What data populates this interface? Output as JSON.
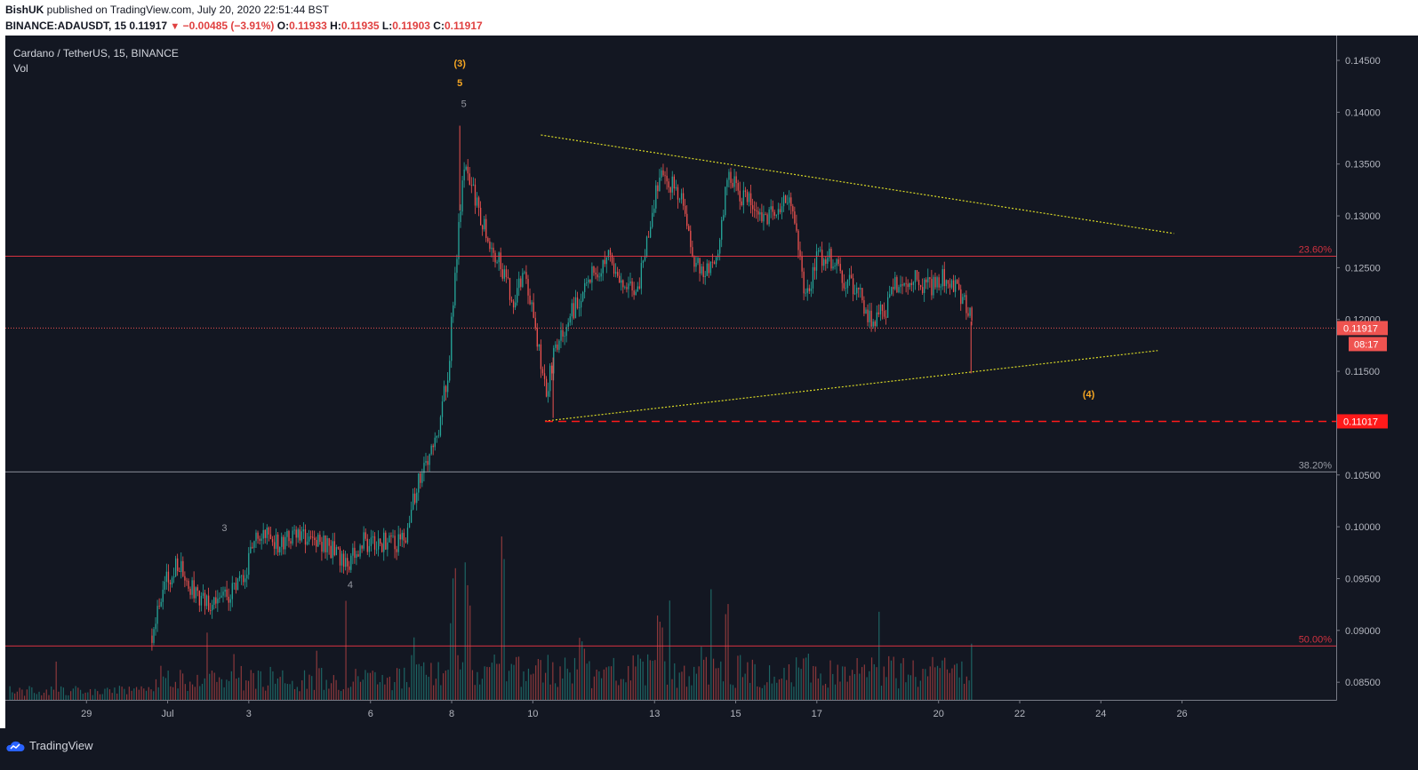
{
  "header": {
    "author": "BishUK",
    "published_text": " published on TradingView.com, July 20, 2020 22:51:44 BST",
    "symbol_line": "BINANCE:ADAUSDT, 15",
    "last": "0.11917",
    "change": "−0.00485 (−3.91%)",
    "open_label": "O:",
    "open": "0.11933",
    "high_label": "H:",
    "high": "0.11935",
    "low_label": "L:",
    "low": "0.11903",
    "close_label": "C:",
    "close": "0.11917"
  },
  "legend": {
    "title": "Cardano / TetherUS, 15, BINANCE",
    "indicator": "Vol"
  },
  "footer": {
    "brand": "TradingView"
  },
  "colors": {
    "background": "#131722",
    "up": "#26a69a",
    "down": "#ef5350",
    "fib": "#f23645",
    "triangle": "#d9d926",
    "wave_label": "#f5a623"
  },
  "chart_data": {
    "type": "candlestick",
    "title": "Cardano / TetherUS, 15, BINANCE",
    "ylim": [
      0.0833,
      0.1474
    ],
    "y_ticks": [
      0.085,
      0.09,
      0.095,
      0.1,
      0.105,
      0.11,
      0.115,
      0.12,
      0.125,
      0.13,
      0.135,
      0.14,
      0.145
    ],
    "y_tick_labels": [
      "0.08500",
      "0.09000",
      "0.09500",
      "0.10000",
      "0.10500",
      "0.11000",
      "0.11500",
      "0.12000",
      "0.12500",
      "0.13000",
      "0.13500",
      "0.14000",
      "0.14500"
    ],
    "x_range_days": [
      27.0,
      59.8
    ],
    "x_ticks": [
      {
        "day": 29,
        "label": "29"
      },
      {
        "day": 31,
        "label": "Jul"
      },
      {
        "day": 33,
        "label": "3"
      },
      {
        "day": 36,
        "label": "6"
      },
      {
        "day": 38,
        "label": "8"
      },
      {
        "day": 40,
        "label": "10"
      },
      {
        "day": 43,
        "label": "13"
      },
      {
        "day": 45,
        "label": "15"
      },
      {
        "day": 47,
        "label": "17"
      },
      {
        "day": 50,
        "label": "20"
      },
      {
        "day": 52,
        "label": "22"
      },
      {
        "day": 54,
        "label": "24"
      },
      {
        "day": 56,
        "label": "26"
      }
    ],
    "price_path": [
      [
        30.6,
        0.0895
      ],
      [
        30.8,
        0.0935
      ],
      [
        31.2,
        0.0965
      ],
      [
        31.6,
        0.094
      ],
      [
        32.0,
        0.0925
      ],
      [
        32.5,
        0.0935
      ],
      [
        32.8,
        0.0945
      ],
      [
        33.2,
        0.0995
      ],
      [
        33.7,
        0.0985
      ],
      [
        34.2,
        0.0995
      ],
      [
        34.8,
        0.0985
      ],
      [
        35.4,
        0.0965
      ],
      [
        35.8,
        0.0985
      ],
      [
        36.3,
        0.0985
      ],
      [
        36.8,
        0.0985
      ],
      [
        37.2,
        0.105
      ],
      [
        37.6,
        0.108
      ],
      [
        37.9,
        0.115
      ],
      [
        38.1,
        0.126
      ],
      [
        38.3,
        0.135
      ],
      [
        38.6,
        0.131
      ],
      [
        38.9,
        0.128
      ],
      [
        39.2,
        0.125
      ],
      [
        39.5,
        0.122
      ],
      [
        39.8,
        0.124
      ],
      [
        40.0,
        0.12
      ],
      [
        40.3,
        0.113
      ],
      [
        40.6,
        0.118
      ],
      [
        41.0,
        0.121
      ],
      [
        41.4,
        0.124
      ],
      [
        41.8,
        0.126
      ],
      [
        42.2,
        0.124
      ],
      [
        42.6,
        0.123
      ],
      [
        42.8,
        0.128
      ],
      [
        43.1,
        0.134
      ],
      [
        43.4,
        0.133
      ],
      [
        43.7,
        0.131
      ],
      [
        43.9,
        0.126
      ],
      [
        44.2,
        0.124
      ],
      [
        44.5,
        0.126
      ],
      [
        44.8,
        0.134
      ],
      [
        45.1,
        0.132
      ],
      [
        45.4,
        0.131
      ],
      [
        45.7,
        0.13
      ],
      [
        46.0,
        0.13
      ],
      [
        46.3,
        0.132
      ],
      [
        46.5,
        0.128
      ],
      [
        46.7,
        0.122
      ],
      [
        47.0,
        0.126
      ],
      [
        47.3,
        0.126
      ],
      [
        47.6,
        0.124
      ],
      [
        48.0,
        0.123
      ],
      [
        48.3,
        0.12
      ],
      [
        48.7,
        0.121
      ],
      [
        49.0,
        0.124
      ],
      [
        49.4,
        0.124
      ],
      [
        49.8,
        0.123
      ],
      [
        50.1,
        0.124
      ],
      [
        50.4,
        0.123
      ],
      [
        50.7,
        0.121
      ],
      [
        50.85,
        0.1192
      ]
    ],
    "volume_peaks": [
      {
        "day": 37.0,
        "value": 0.55
      },
      {
        "day": 38.1,
        "value": 1.0
      },
      {
        "day": 38.4,
        "value": 0.85
      },
      {
        "day": 39.2,
        "value": 0.95
      },
      {
        "day": 41.2,
        "value": 0.4
      },
      {
        "day": 43.1,
        "value": 0.5
      },
      {
        "day": 44.8,
        "value": 0.55
      },
      {
        "day": 46.7,
        "value": 0.35
      },
      {
        "day": 50.85,
        "value": 0.45
      }
    ],
    "volume_max": 200,
    "extremes": {
      "high": {
        "day": 38.2,
        "price": 0.1387
      },
      "low": {
        "day": 40.5,
        "price": 0.1105
      },
      "last_dip": {
        "day": 50.8,
        "price": 0.1148
      }
    },
    "fib_levels": [
      {
        "label": "23.60%",
        "price": 0.1261,
        "color": "#f23645"
      },
      {
        "label": "38.20%",
        "price": 0.1053,
        "color": "#b2b5be"
      },
      {
        "label": "50.00%",
        "price": 0.0885,
        "color": "#f23645"
      }
    ],
    "triangle_lines": [
      {
        "name": "upper",
        "x1": 40.2,
        "y1": 0.1378,
        "x2": 55.8,
        "y2": 0.1283
      },
      {
        "name": "lower",
        "x1": 40.3,
        "y1": 0.1102,
        "x2": 55.4,
        "y2": 0.117
      }
    ],
    "horizontal_levels": [
      {
        "name": "last-price",
        "price": 0.11917,
        "label": "0.11917",
        "style": "dotted"
      },
      {
        "name": "support",
        "price": 0.11017,
        "label": "0.11017",
        "style": "dashed"
      }
    ],
    "countdown": "08:17",
    "wave_labels": [
      {
        "text": "(3)",
        "day": 38.2,
        "price": 0.1444,
        "color": "#f5a623"
      },
      {
        "text": "5",
        "day": 38.2,
        "price": 0.1425,
        "color": "#f5a623"
      },
      {
        "text": "5",
        "day": 38.3,
        "price": 0.1405,
        "color": "#9598a1"
      },
      {
        "text": "3",
        "day": 32.4,
        "price": 0.0996,
        "color": "#9598a1"
      },
      {
        "text": "4",
        "day": 35.5,
        "price": 0.0941,
        "color": "#9598a1"
      },
      {
        "text": "(4)",
        "day": 53.7,
        "price": 0.1125,
        "color": "#f5a623"
      }
    ]
  }
}
